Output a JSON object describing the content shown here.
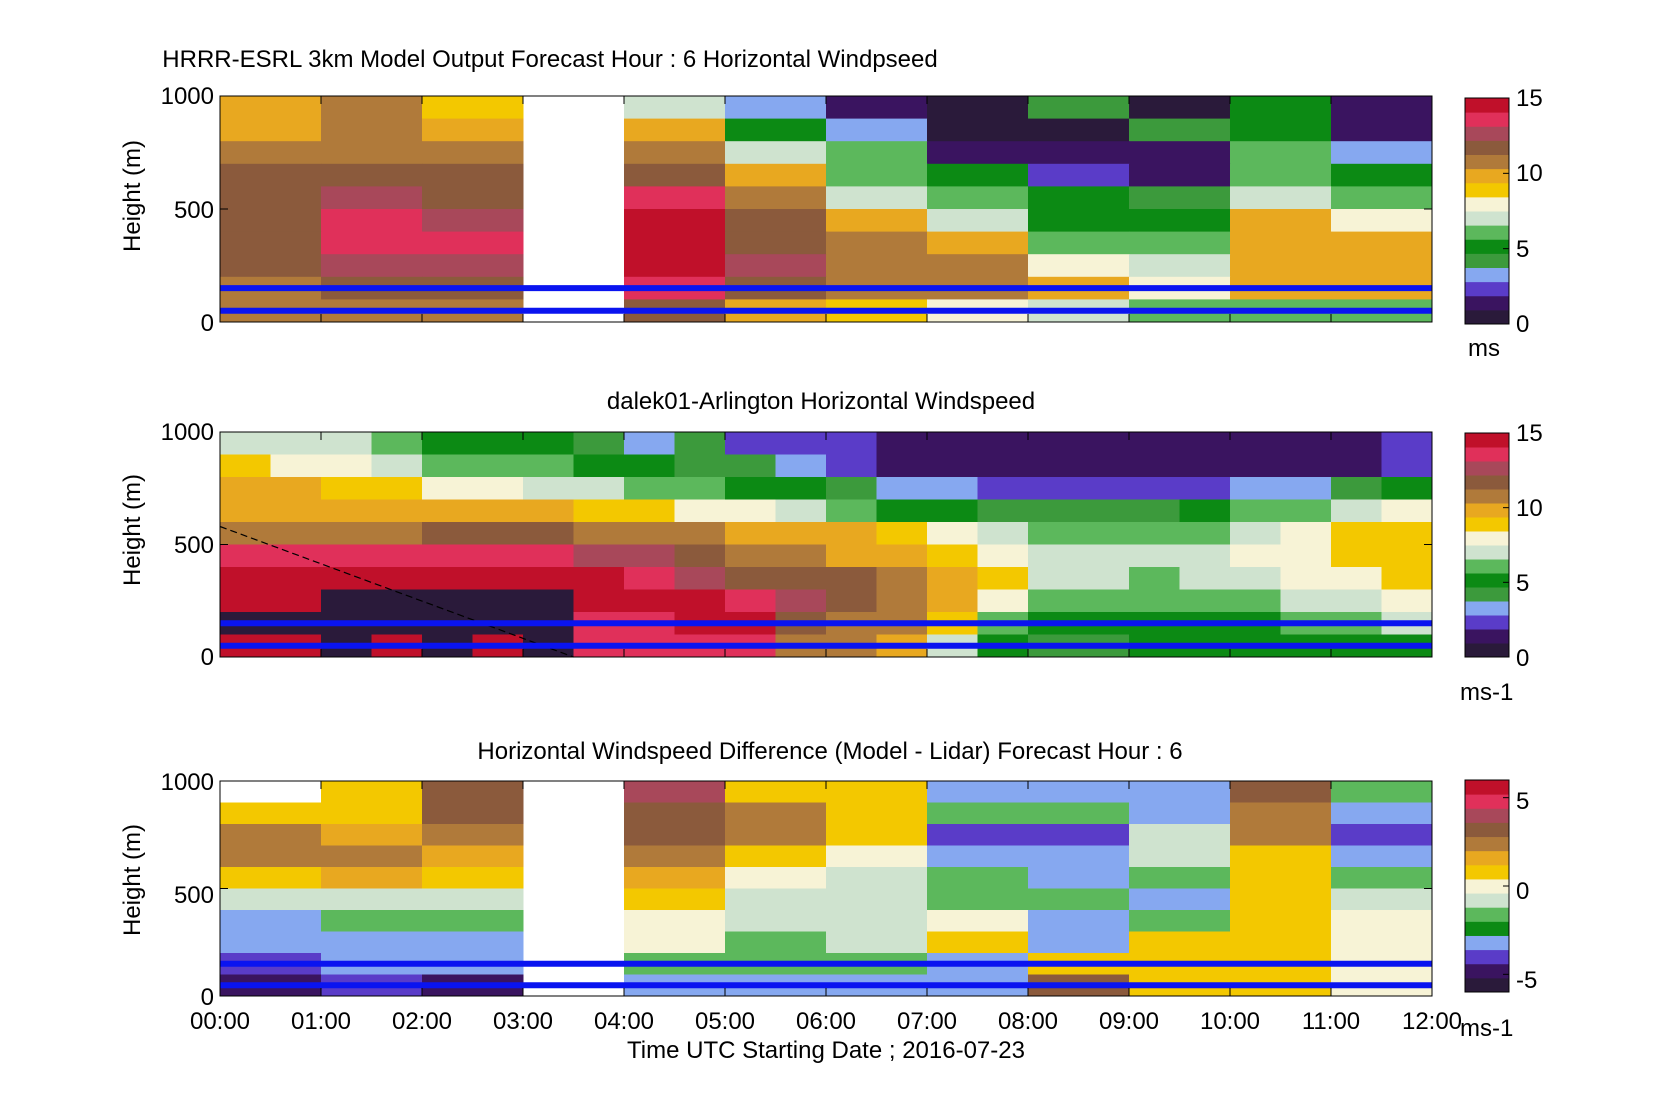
{
  "figure": {
    "xticks": [
      "00:00",
      "01:00",
      "02:00",
      "03:00",
      "04:00",
      "05:00",
      "06:00",
      "07:00",
      "08:00",
      "09:00",
      "10:00",
      "11:00",
      "12:00"
    ],
    "xlabel": "Time UTC  Starting Date ; 2016-07-23"
  },
  "colormaps": {
    "speed": [
      "#2a1a3a",
      "#3a1460",
      "#5a3cc8",
      "#86a8f0",
      "#3c9a3c",
      "#0c8a14",
      "#5cb85c",
      "#cfe3cf",
      "#f7f3d6",
      "#f3c800",
      "#e8a820",
      "#b07a3a",
      "#8b5a3c",
      "#a8485a",
      "#e0305a",
      "#c0102a"
    ],
    "diff": [
      "#2a1a3a",
      "#3a1460",
      "#5a3cc8",
      "#86a8f0",
      "#0c8a14",
      "#5cb85c",
      "#cfe3cf",
      "#f7f3d6",
      "#f3c800",
      "#e8a820",
      "#b07a3a",
      "#8b5a3c",
      "#a8485a",
      "#e0305a",
      "#c0102a"
    ]
  },
  "chart_data": [
    {
      "type": "heatmap",
      "title": "HRRR-ESRL 3km Model Output   Forecast Hour : 6 Horizontal Windpseed",
      "xlabel": "",
      "ylabel": "Height (m)",
      "yticks": [
        "1000",
        "500",
        "0"
      ],
      "ylim": [
        0,
        1000
      ],
      "xlim": [
        "00:00",
        "12:00"
      ],
      "colorbar": {
        "ticks": [
          "15",
          "10",
          "5",
          "0"
        ],
        "range": [
          0,
          15
        ],
        "unit": "ms"
      },
      "reference_lines_m": [
        150,
        50
      ],
      "time_bins": [
        "00:00",
        "01:00",
        "02:00",
        "03:00",
        "04:00",
        "05:00",
        "06:00",
        "07:00",
        "08:00",
        "09:00",
        "10:00",
        "11:00"
      ],
      "height_bins_m": [
        1000,
        900,
        800,
        700,
        600,
        500,
        400,
        300,
        200,
        100
      ],
      "values": [
        [
          10,
          11,
          8.5,
          null,
          7,
          3.5,
          1.5,
          0.3,
          4,
          0.3,
          5,
          1.5
        ],
        [
          10,
          10.5,
          10,
          null,
          10,
          5,
          3.5,
          0.3,
          0.3,
          4,
          5,
          1.5
        ],
        [
          11,
          11,
          11,
          null,
          10.5,
          7,
          6,
          1.5,
          1,
          1,
          6,
          3.5
        ],
        [
          12,
          12,
          12,
          null,
          12,
          10,
          6,
          5,
          2.5,
          1.5,
          6,
          5
        ],
        [
          12,
          13,
          12,
          null,
          14,
          10.5,
          7,
          6,
          5,
          4.5,
          7,
          6.5
        ],
        [
          12,
          13.5,
          13,
          null,
          15,
          12,
          10,
          7,
          5,
          5,
          9.5,
          8
        ],
        [
          12,
          13.5,
          13.5,
          null,
          15,
          12,
          11,
          10,
          6.5,
          6,
          10,
          9.5
        ],
        [
          11.5,
          13,
          13,
          null,
          15,
          13,
          11,
          10.5,
          8,
          7,
          10,
          10
        ],
        [
          11,
          12,
          12,
          null,
          14,
          12,
          11,
          10.5,
          10,
          8,
          10,
          10
        ],
        [
          10.5,
          11,
          11,
          null,
          12,
          10,
          9,
          8,
          7,
          6,
          6,
          6
        ]
      ]
    },
    {
      "type": "heatmap",
      "title": "dalek01-Arlington  Horizontal Windspeed",
      "xlabel": "",
      "ylabel": "Height (m)",
      "yticks": [
        "1000",
        "500",
        "0"
      ],
      "ylim": [
        0,
        1000
      ],
      "xlim": [
        "00:00",
        "12:00"
      ],
      "colorbar": {
        "ticks": [
          "15",
          "10",
          "5",
          "0"
        ],
        "range": [
          0,
          15
        ],
        "unit": "ms-1"
      },
      "reference_lines_m": [
        150,
        50
      ],
      "time_bins": [
        "00:00",
        "00:30",
        "01:00",
        "01:30",
        "02:00",
        "02:30",
        "03:00",
        "03:30",
        "04:00",
        "04:30",
        "05:00",
        "05:30",
        "06:00",
        "06:30",
        "07:00",
        "07:30",
        "08:00",
        "08:30",
        "09:00",
        "09:30",
        "10:00",
        "10:30",
        "11:00",
        "11:30"
      ],
      "height_bins_m": [
        1000,
        900,
        800,
        700,
        600,
        500,
        400,
        300,
        200,
        100
      ],
      "values": [
        [
          7,
          7,
          7,
          6,
          5,
          5,
          5,
          4,
          3,
          4,
          2,
          2,
          2,
          1,
          1,
          1,
          1,
          1,
          1,
          1,
          1,
          1,
          1,
          2
        ],
        [
          9,
          8,
          8,
          7,
          6,
          6,
          6,
          5,
          5,
          4,
          4,
          3,
          2,
          1,
          1,
          1,
          1,
          1,
          1,
          1,
          1,
          1,
          1,
          2
        ],
        [
          10,
          10,
          9,
          9,
          8,
          8,
          7,
          7,
          6,
          6,
          5,
          5,
          4,
          3,
          3,
          2,
          2,
          2,
          2,
          2,
          3,
          3,
          4,
          5
        ],
        [
          10,
          10,
          10,
          10,
          10,
          10,
          10,
          9,
          9,
          8,
          8,
          7,
          6,
          5,
          5,
          4,
          4,
          4,
          4,
          5,
          6,
          6,
          7,
          8
        ],
        [
          11,
          11,
          11,
          11,
          12,
          12,
          12,
          11,
          11,
          11,
          10,
          10,
          10,
          9,
          8,
          7,
          6,
          6,
          6,
          6,
          7,
          8,
          9,
          9
        ],
        [
          14,
          14,
          14,
          14,
          14,
          14,
          14,
          13,
          13,
          12,
          11,
          11,
          10,
          10,
          9,
          8,
          7,
          7,
          7,
          7,
          8,
          8,
          9,
          9
        ],
        [
          15,
          15,
          15,
          15,
          15,
          15,
          15,
          15,
          14,
          13,
          12,
          12,
          12,
          11,
          10,
          9,
          7,
          7,
          6,
          7,
          7,
          8,
          8,
          9
        ],
        [
          15,
          15,
          0.5,
          0.5,
          0.5,
          0.5,
          0.5,
          15,
          15,
          15,
          14,
          13,
          12,
          11,
          10,
          8,
          6,
          6,
          6,
          6,
          6,
          7,
          7,
          8
        ],
        [
          0.5,
          0.5,
          0.5,
          0.5,
          0.5,
          0.5,
          0.5,
          14,
          14,
          15,
          15,
          12,
          11,
          11,
          9,
          6,
          5,
          5,
          5,
          5,
          5,
          6,
          6,
          7
        ],
        [
          15,
          15,
          0.5,
          15,
          0.5,
          15,
          0.5,
          14,
          14,
          14,
          14,
          11,
          11,
          10,
          7,
          5,
          4,
          4,
          5,
          5,
          5,
          5,
          5,
          5
        ]
      ],
      "annotation": {
        "style": "dashed black line",
        "from": {
          "x": "00:00",
          "y_m": 580
        },
        "to": {
          "x": "03:30",
          "y_m": 0
        }
      }
    },
    {
      "type": "heatmap",
      "title": "Horizontal Windspeed Difference (Model - Lidar) Forecast Hour : 6",
      "xlabel": "Time UTC  Starting Date ; 2016-07-23",
      "ylabel": "Height (m)",
      "yticks": [
        "1000",
        "500",
        "0"
      ],
      "ylim": [
        0,
        1000
      ],
      "xlim": [
        "00:00",
        "12:00"
      ],
      "colorbar": {
        "ticks": [
          "5",
          "0",
          "-5"
        ],
        "range": [
          -6,
          6
        ],
        "unit": "ms-1"
      },
      "reference_lines_m": [
        150,
        50
      ],
      "time_bins": [
        "00:00",
        "01:00",
        "02:00",
        "03:00",
        "04:00",
        "05:00",
        "06:00",
        "07:00",
        "08:00",
        "09:00",
        "10:00",
        "11:00"
      ],
      "height_bins_m": [
        1000,
        900,
        800,
        700,
        600,
        500,
        400,
        300,
        200,
        100
      ],
      "values": [
        [
          null,
          1,
          3,
          null,
          4,
          1,
          1,
          -3,
          -3,
          -3,
          3,
          -2
        ],
        [
          1,
          1,
          3,
          null,
          3,
          2,
          1,
          -2,
          -2,
          -3,
          2,
          -3
        ],
        [
          2,
          1.5,
          2.5,
          null,
          3,
          2,
          1,
          -4,
          -4,
          -1,
          2,
          -4
        ],
        [
          2,
          2,
          1.5,
          null,
          2,
          0.5,
          0,
          -3,
          -3,
          -1,
          1,
          -3
        ],
        [
          1,
          1.5,
          0.5,
          null,
          1.5,
          0,
          -1,
          -2,
          -3,
          -2,
          1,
          -2
        ],
        [
          -1,
          -1,
          -1,
          null,
          1,
          -1,
          -1,
          -2,
          -2,
          -3,
          1,
          -1
        ],
        [
          -3,
          -2,
          -2,
          null,
          0,
          -1,
          -1,
          0,
          -3,
          -2,
          1,
          0
        ],
        [
          -3,
          -3,
          -3,
          null,
          0,
          -2,
          -1,
          1,
          -3,
          1,
          1,
          0
        ],
        [
          -4,
          -3,
          -3,
          null,
          -2,
          -2,
          -2,
          -3,
          1,
          1,
          1,
          0
        ],
        [
          -5,
          -4,
          -5,
          null,
          -3,
          -3,
          -3,
          -3,
          3,
          1,
          1,
          0
        ]
      ]
    }
  ]
}
